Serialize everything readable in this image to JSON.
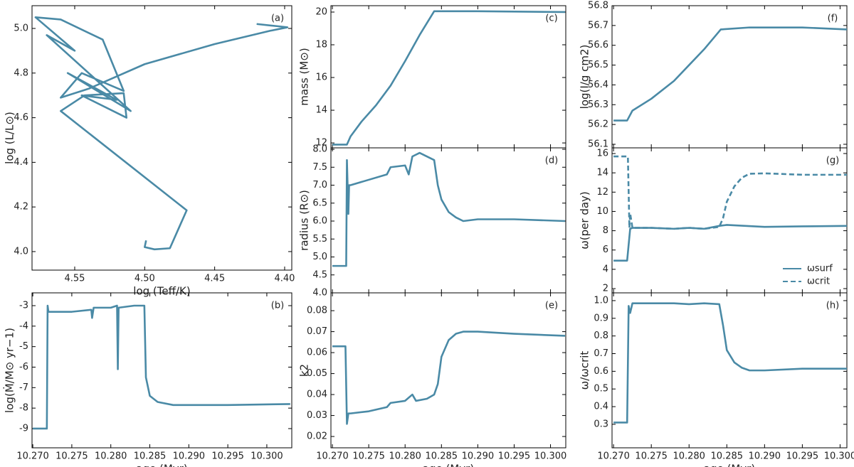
{
  "chart_data": [
    {
      "type": "line",
      "panel_label": "(a)",
      "xlabel": "log (Teff/K)",
      "ylabel": "log (L/L⊙)",
      "xlim": [
        4.5805,
        4.3949
      ],
      "ylim": [
        3.917,
        5.102
      ],
      "xticks": [
        4.55,
        {
          "value": 4.5,
          "label": "4.50"
        },
        4.45,
        {
          "value": 4.4,
          "label": "4.40"
        }
      ],
      "yticks": [
        {
          "value": 4,
          "label": "4.0"
        },
        4.2,
        4.4,
        4.6,
        4.8,
        {
          "value": 5,
          "label": "5.0"
        }
      ],
      "show_xtick_labels": true,
      "series": [
        {
          "color": "#4a8aa6",
          "linestyle": "solid",
          "x": [
            4.499,
            4.5,
            4.493,
            4.482,
            4.476,
            4.47,
            4.56,
            4.543,
            4.515,
            4.513,
            4.545,
            4.52,
            4.555,
            4.51,
            4.57,
            4.55,
            4.578,
            4.56,
            4.53,
            4.515,
            4.545,
            4.56,
            4.54,
            4.5,
            4.45,
            4.41,
            4.398,
            4.405,
            4.42
          ],
          "values": [
            4.05,
            4.02,
            4.01,
            4.015,
            4.1,
            4.185,
            4.63,
            4.7,
            4.71,
            4.6,
            4.7,
            4.68,
            4.8,
            4.63,
            4.97,
            4.9,
            5.05,
            5.04,
            4.95,
            4.72,
            4.8,
            4.69,
            4.73,
            4.84,
            4.93,
            4.99,
            5.005,
            5.01,
            5.02
          ]
        }
      ]
    },
    {
      "type": "line",
      "panel_label": "(b)",
      "xlabel": "age (Myr)",
      "ylabel": "log(Ṁ/M⊙ yr−1)",
      "xlim": [
        10.2699,
        10.3032
      ],
      "ylim": [
        -9.937,
        -2.376
      ],
      "xticks": [
        {
          "value": 10.27,
          "label": "10.270"
        },
        10.275,
        {
          "value": 10.28,
          "label": "10.280"
        },
        10.285,
        {
          "value": 10.29,
          "label": "10.290"
        },
        10.295,
        {
          "value": 10.3,
          "label": "10.300"
        }
      ],
      "yticks": [
        -9,
        -8,
        -7,
        -6,
        -5,
        -4,
        -3
      ],
      "show_xtick_labels": true,
      "series": [
        {
          "color": "#4a8aa6",
          "linestyle": "solid",
          "x": [
            10.27,
            10.2718,
            10.2719,
            10.272,
            10.2725,
            10.275,
            10.2775,
            10.2776,
            10.2778,
            10.28,
            10.2808,
            10.2809,
            10.281,
            10.283,
            10.2843,
            10.2845,
            10.285,
            10.286,
            10.288,
            10.29,
            10.295,
            10.303
          ],
          "values": [
            -9,
            -9,
            -3,
            -3.3,
            -3.3,
            -3.3,
            -3.2,
            -3.6,
            -3.1,
            -3.1,
            -3,
            -6.1,
            -3.1,
            -3,
            -3,
            -6.5,
            -7.4,
            -7.7,
            -7.85,
            -7.85,
            -7.85,
            -7.8
          ]
        }
      ]
    },
    {
      "type": "line",
      "panel_label": "(c)",
      "ylabel": "mass (M⊙)",
      "xlim": [
        10.2698,
        10.3021
      ],
      "ylim": [
        11.7,
        20.39
      ],
      "xticks": [
        10.27,
        10.275,
        10.28,
        10.285,
        10.29,
        10.295,
        10.3
      ],
      "yticks": [
        12,
        14,
        16,
        18,
        20
      ],
      "show_xtick_labels": false,
      "series": [
        {
          "color": "#4a8aa6",
          "linestyle": "solid",
          "x": [
            10.27,
            10.272,
            10.2725,
            10.274,
            10.276,
            10.278,
            10.28,
            10.282,
            10.284,
            10.29,
            10.302
          ],
          "values": [
            11.9,
            11.9,
            12.4,
            13.3,
            14.3,
            15.5,
            17,
            18.6,
            20.05,
            20.05,
            20
          ]
        }
      ]
    },
    {
      "type": "line",
      "panel_label": "(d)",
      "ylabel": "radius (R⊙)",
      "xlim": [
        10.2698,
        10.3021
      ],
      "ylim": [
        4,
        8.04
      ],
      "xticks": [
        10.27,
        10.275,
        10.28,
        10.285,
        10.29,
        10.295,
        10.3
      ],
      "yticks": [
        {
          "value": 4,
          "label": "4.0"
        },
        4.5,
        {
          "value": 5,
          "label": "5.0"
        },
        5.5,
        {
          "value": 6,
          "label": "6.0"
        },
        6.5,
        {
          "value": 7,
          "label": "7.0"
        },
        7.5,
        {
          "value": 8,
          "label": "8.0"
        }
      ],
      "show_xtick_labels": false,
      "series": [
        {
          "color": "#4a8aa6",
          "linestyle": "solid",
          "x": [
            10.27,
            10.2719,
            10.272,
            10.2722,
            10.2723,
            10.2725,
            10.275,
            10.2775,
            10.278,
            10.28,
            10.2805,
            10.281,
            10.282,
            10.284,
            10.2845,
            10.285,
            10.286,
            10.287,
            10.288,
            10.29,
            10.295,
            10.302
          ],
          "values": [
            4.75,
            4.75,
            7.7,
            6.2,
            7,
            7,
            7.15,
            7.3,
            7.5,
            7.55,
            7.3,
            7.8,
            7.9,
            7.7,
            7,
            6.6,
            6.25,
            6.1,
            6,
            6.05,
            6.05,
            6
          ]
        }
      ]
    },
    {
      "type": "line",
      "panel_label": "(e)",
      "xlabel": "age (Myr)",
      "ylabel": "k2",
      "xlim": [
        10.2698,
        10.3021
      ],
      "ylim": [
        0.0146,
        0.0885
      ],
      "xticks": [
        {
          "value": 10.27,
          "label": "10.270"
        },
        10.275,
        {
          "value": 10.28,
          "label": "10.280"
        },
        10.285,
        {
          "value": 10.29,
          "label": "10.290"
        },
        10.295,
        {
          "value": 10.3,
          "label": "10.300"
        }
      ],
      "yticks": [
        0.02,
        0.03,
        0.04,
        0.05,
        0.06,
        0.07,
        0.08
      ],
      "show_xtick_labels": true,
      "series": [
        {
          "color": "#4a8aa6",
          "linestyle": "solid",
          "x": [
            10.27,
            10.2718,
            10.272,
            10.2722,
            10.2725,
            10.275,
            10.2775,
            10.278,
            10.28,
            10.281,
            10.2815,
            10.283,
            10.284,
            10.2845,
            10.285,
            10.286,
            10.287,
            10.288,
            10.29,
            10.295,
            10.302
          ],
          "values": [
            0.063,
            0.063,
            0.026,
            0.031,
            0.031,
            0.032,
            0.034,
            0.036,
            0.037,
            0.04,
            0.037,
            0.038,
            0.04,
            0.045,
            0.058,
            0.066,
            0.069,
            0.07,
            0.07,
            0.069,
            0.068
          ]
        }
      ]
    },
    {
      "type": "line",
      "panel_label": "(f)",
      "ylabel": "log(I/g cm2)",
      "xlim": [
        10.2698,
        10.3009
      ],
      "ylim": [
        56.082,
        56.8
      ],
      "xticks": [
        10.27,
        10.275,
        10.28,
        10.285,
        10.29,
        10.295,
        10.3
      ],
      "yticks": [
        56.1,
        56.2,
        56.3,
        56.4,
        56.5,
        56.6,
        56.7,
        56.8
      ],
      "show_xtick_labels": false,
      "series": [
        {
          "color": "#4a8aa6",
          "linestyle": "solid",
          "x": [
            10.27,
            10.2718,
            10.2725,
            10.275,
            10.278,
            10.28,
            10.282,
            10.2842,
            10.288,
            10.295,
            10.3009
          ],
          "values": [
            56.22,
            56.22,
            56.27,
            56.33,
            56.42,
            56.5,
            56.58,
            56.68,
            56.69,
            56.69,
            56.68
          ]
        }
      ]
    },
    {
      "type": "line",
      "panel_label": "(g)",
      "ylabel": "ω(per day)",
      "xlim": [
        10.2698,
        10.3009
      ],
      "ylim": [
        1.56,
        16.59
      ],
      "xticks": [
        10.27,
        10.275,
        10.28,
        10.285,
        10.29,
        10.295,
        10.3
      ],
      "yticks": [
        2,
        4,
        6,
        8,
        10,
        12,
        14,
        16
      ],
      "show_xtick_labels": false,
      "legend": "lower right",
      "series": [
        {
          "name": "ωsurf",
          "color": "#4a8aa6",
          "linestyle": "solid",
          "x": [
            10.27,
            10.2718,
            10.2722,
            10.2725,
            10.275,
            10.278,
            10.28,
            10.282,
            10.284,
            10.285,
            10.29,
            10.295,
            10.3009
          ],
          "values": [
            4.9,
            4.9,
            8.2,
            8.3,
            8.3,
            8.2,
            8.3,
            8.2,
            8.5,
            8.6,
            8.4,
            8.45,
            8.5
          ]
        },
        {
          "name": "ωcrit",
          "color": "#4a8aa6",
          "linestyle": "dashed",
          "x": [
            10.27,
            10.2718,
            10.2719,
            10.2721,
            10.2722,
            10.2725,
            10.275,
            10.278,
            10.28,
            10.282,
            10.284,
            10.2845,
            10.285,
            10.286,
            10.287,
            10.288,
            10.29,
            10.295,
            10.3009
          ],
          "values": [
            15.7,
            15.7,
            15.7,
            8.3,
            9.8,
            8.3,
            8.3,
            8.2,
            8.3,
            8.2,
            8.4,
            9.3,
            11,
            12.6,
            13.5,
            13.9,
            13.95,
            13.8,
            13.8
          ]
        }
      ]
    },
    {
      "type": "line",
      "panel_label": "(h)",
      "xlabel": "age (Myr)",
      "ylabel": "ω/ωcrit",
      "xlim": [
        10.2698,
        10.3009
      ],
      "ylim": [
        0.167,
        1.044
      ],
      "xticks": [
        {
          "value": 10.27,
          "label": "10.270"
        },
        10.275,
        {
          "value": 10.28,
          "label": "10.280"
        },
        10.285,
        {
          "value": 10.29,
          "label": "10.290"
        },
        10.295,
        {
          "value": 10.3,
          "label": "10.300"
        }
      ],
      "yticks": [
        0.3,
        0.4,
        0.5,
        0.6,
        0.7,
        0.8,
        0.9,
        {
          "value": 1,
          "label": "1.0"
        }
      ],
      "show_xtick_labels": true,
      "series": [
        {
          "color": "#4a8aa6",
          "linestyle": "solid",
          "x": [
            10.27,
            10.2718,
            10.272,
            10.2722,
            10.2725,
            10.275,
            10.278,
            10.28,
            10.282,
            10.284,
            10.2845,
            10.285,
            10.286,
            10.287,
            10.288,
            10.29,
            10.295,
            10.3009
          ],
          "values": [
            0.31,
            0.31,
            0.97,
            0.93,
            0.985,
            0.985,
            0.985,
            0.98,
            0.985,
            0.98,
            0.86,
            0.72,
            0.65,
            0.62,
            0.605,
            0.605,
            0.615,
            0.615
          ]
        }
      ]
    }
  ]
}
